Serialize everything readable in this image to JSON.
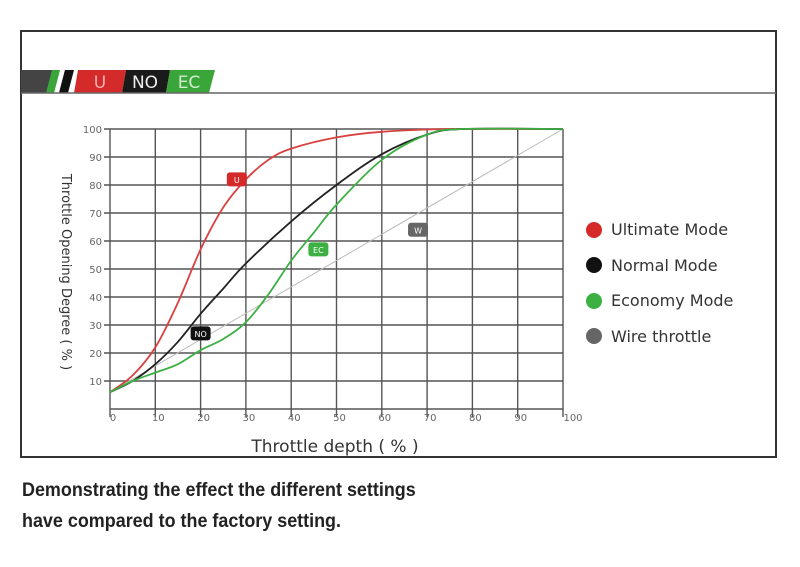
{
  "banner": {
    "labels": [
      "U",
      "NO",
      "EC"
    ],
    "colors": [
      "#d42a2a",
      "#1a1a1a",
      "#3aa63a"
    ]
  },
  "caption": {
    "line1": "Demonstrating the effect the different settings",
    "line2": "have compared to the factory setting."
  },
  "chart_data": {
    "type": "line",
    "xlabel": "Throttle depth ( % )",
    "ylabel": "Throttle Opening Degree ( % )",
    "xlim": [
      0,
      100
    ],
    "ylim": [
      0,
      100
    ],
    "xticks": [
      "0",
      "10",
      "20",
      "30",
      "40",
      "50",
      "60",
      "70",
      "80",
      "90",
      "100"
    ],
    "yticks": [
      "10",
      "20",
      "30",
      "40",
      "50",
      "60",
      "70",
      "80",
      "90",
      "100"
    ],
    "grid": true,
    "legend_position": "right",
    "series": [
      {
        "name": "Ultimate Mode",
        "color": "#d94040",
        "tag": "U",
        "points": [
          [
            0,
            6
          ],
          [
            5,
            12
          ],
          [
            10,
            22
          ],
          [
            15,
            38
          ],
          [
            20,
            57
          ],
          [
            25,
            72
          ],
          [
            30,
            82
          ],
          [
            35,
            89
          ],
          [
            40,
            93
          ],
          [
            50,
            97
          ],
          [
            60,
            99
          ],
          [
            75,
            100
          ],
          [
            100,
            100
          ]
        ],
        "tag_at": [
          28,
          82
        ]
      },
      {
        "name": "Normal Mode",
        "color": "#222222",
        "tag": "NO",
        "points": [
          [
            0,
            6
          ],
          [
            5,
            10
          ],
          [
            10,
            16
          ],
          [
            15,
            24
          ],
          [
            20,
            34
          ],
          [
            25,
            43
          ],
          [
            30,
            52
          ],
          [
            40,
            67
          ],
          [
            50,
            80
          ],
          [
            60,
            91
          ],
          [
            70,
            98
          ],
          [
            78,
            100
          ],
          [
            100,
            100
          ]
        ],
        "tag_at": [
          20,
          27
        ]
      },
      {
        "name": "Economy Mode",
        "color": "#3cb043",
        "tag": "EC",
        "points": [
          [
            0,
            6
          ],
          [
            5,
            10
          ],
          [
            10,
            13
          ],
          [
            15,
            16
          ],
          [
            20,
            21
          ],
          [
            25,
            25
          ],
          [
            30,
            31
          ],
          [
            35,
            41
          ],
          [
            40,
            53
          ],
          [
            45,
            63
          ],
          [
            50,
            73
          ],
          [
            60,
            89
          ],
          [
            70,
            98
          ],
          [
            78,
            100
          ],
          [
            100,
            100
          ]
        ],
        "tag_at": [
          46,
          57
        ]
      },
      {
        "name": "Wire throttle",
        "color": "#bbbbbb",
        "tag": "W",
        "points": [
          [
            0,
            6
          ],
          [
            100,
            100
          ]
        ],
        "tag_at": [
          68,
          64
        ]
      }
    ]
  }
}
